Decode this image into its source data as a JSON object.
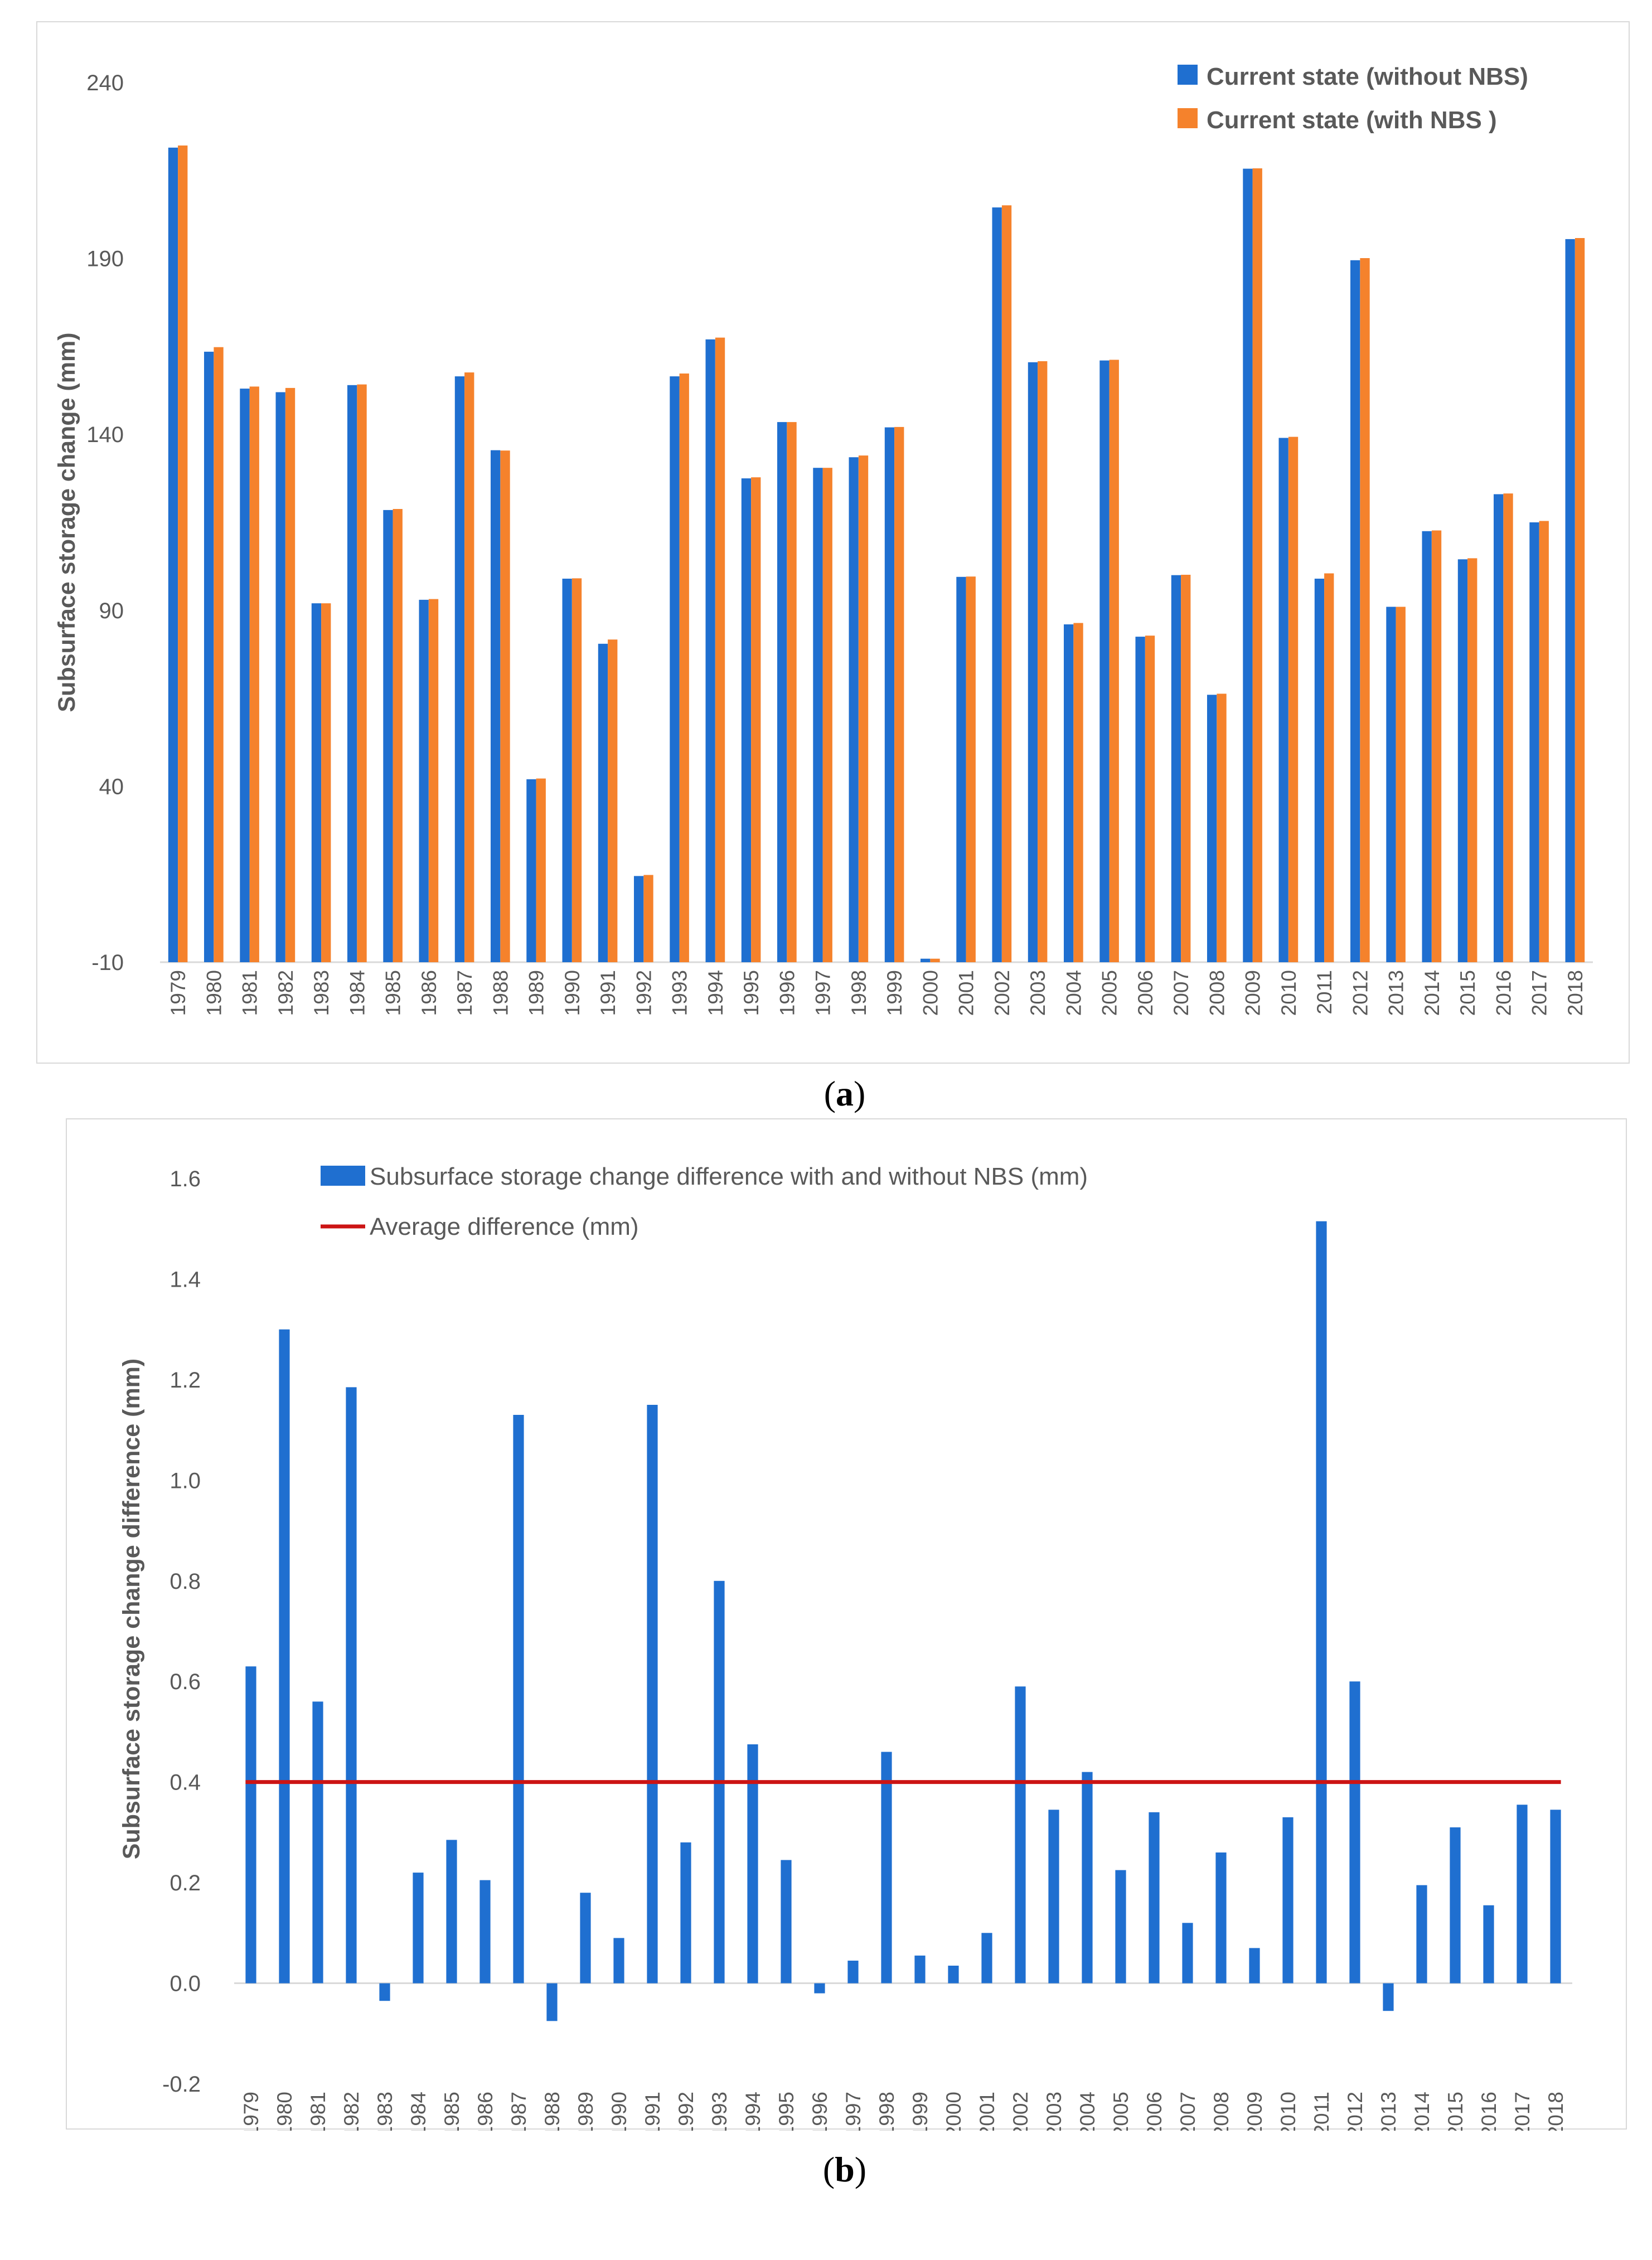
{
  "colors": {
    "without_nbs": "#1f6fd0",
    "with_nbs": "#f5822c",
    "difference_bar": "#1f6fd0",
    "average_line": "#cc1414",
    "axis": "#d9d9d9",
    "tick_text": "#595959"
  },
  "captions": {
    "a": {
      "open": "(",
      "letter": "a",
      "close": ")"
    },
    "b": {
      "open": "(",
      "letter": "b",
      "close": ")"
    }
  },
  "chart_data": [
    {
      "type": "bar",
      "panel": "a",
      "title": "",
      "xlabel": "",
      "ylabel": "Subsurface storage change  (mm)",
      "ylim": [
        -10,
        240
      ],
      "yticks": [
        "240",
        "190",
        "140",
        "90",
        "40",
        "-10"
      ],
      "grid": false,
      "legend_position": "top-right",
      "categories": [
        "1979",
        "1980",
        "1981",
        "1982",
        "1983",
        "1984",
        "1985",
        "1986",
        "1987",
        "1988",
        "1989",
        "1990",
        "1991",
        "1992",
        "1993",
        "1994",
        "1995",
        "1996",
        "1997",
        "1998",
        "1999",
        "2000",
        "2001",
        "2002",
        "2003",
        "2004",
        "2005",
        "2006",
        "2007",
        "2008",
        "2009",
        "2010",
        "2011",
        "2012",
        "2013",
        "2014",
        "2015",
        "2016",
        "2017",
        "2018"
      ],
      "series": [
        {
          "name": "Current state (without NBS)",
          "values": [
            221.5,
            163.5,
            153.0,
            152.0,
            92.0,
            154.0,
            118.5,
            93.0,
            156.5,
            135.5,
            42.0,
            99.0,
            80.5,
            14.5,
            156.5,
            167.0,
            127.5,
            143.5,
            130.5,
            133.5,
            142.0,
            -9.0,
            99.5,
            204.5,
            160.5,
            86.0,
            161.0,
            82.5,
            100.0,
            66.0,
            215.5,
            139.0,
            99.0,
            189.5,
            91.0,
            112.5,
            104.5,
            123.0,
            115.0,
            195.5
          ]
        },
        {
          "name": "Current state (with NBS )",
          "values": [
            222.1,
            164.8,
            153.6,
            153.2,
            92.0,
            154.2,
            118.8,
            93.2,
            157.6,
            135.4,
            42.2,
            99.1,
            81.7,
            14.8,
            157.3,
            167.5,
            127.8,
            143.5,
            130.5,
            134.0,
            142.1,
            -9.0,
            99.6,
            205.1,
            160.8,
            86.4,
            161.2,
            82.8,
            100.1,
            66.3,
            215.6,
            139.3,
            100.5,
            190.1,
            91.0,
            112.7,
            104.8,
            123.2,
            115.4,
            195.8
          ]
        }
      ]
    },
    {
      "type": "bar",
      "panel": "b",
      "title": "",
      "xlabel": "",
      "ylabel": "Subsurface storage change difference  (mm)",
      "ylim": [
        -0.2,
        1.6
      ],
      "yticks": [
        "1.6",
        "1.4",
        "1.2",
        "1.0",
        "0.8",
        "0.6",
        "0.4",
        "0.2",
        "0.0",
        "-0.2"
      ],
      "grid": false,
      "legend_position": "top-left",
      "categories": [
        "1979",
        "1980",
        "1981",
        "1982",
        "1983",
        "1984",
        "1985",
        "1986",
        "1987",
        "1988",
        "1989",
        "1990",
        "1991",
        "1992",
        "1993",
        "1994",
        "1995",
        "1996",
        "1997",
        "1998",
        "1999",
        "2000",
        "2001",
        "2002",
        "2003",
        "2004",
        "2005",
        "2006",
        "2007",
        "2008",
        "2009",
        "2010",
        "2011",
        "2012",
        "2013",
        "2014",
        "2015",
        "2016",
        "2017",
        "2018"
      ],
      "series": [
        {
          "name": "Subsurface storage change difference with and without NBS  (mm)",
          "values": [
            0.63,
            1.3,
            0.56,
            1.185,
            -0.035,
            0.22,
            0.285,
            0.205,
            1.13,
            -0.075,
            0.18,
            0.09,
            1.15,
            0.28,
            0.8,
            0.475,
            0.245,
            -0.02,
            0.045,
            0.46,
            0.055,
            0.035,
            0.1,
            0.59,
            0.345,
            0.42,
            0.225,
            0.34,
            0.12,
            0.26,
            0.07,
            0.33,
            1.515,
            0.6,
            -0.055,
            0.195,
            0.31,
            0.155,
            0.355,
            0.345
          ]
        }
      ],
      "reference_line": {
        "name": "Average difference (mm)",
        "value": 0.4
      }
    }
  ]
}
